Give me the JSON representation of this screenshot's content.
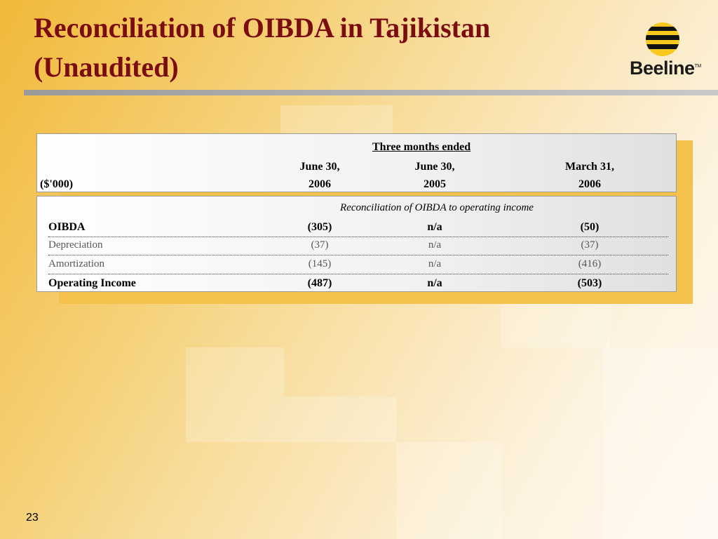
{
  "slide": {
    "title_line1": "Reconciliation of OIBDA in Tajikistan",
    "title_line2": "(Unaudited)",
    "page_number": "23"
  },
  "logo": {
    "text": "Beeline",
    "tm": "TM",
    "icon": "beeline-logo-icon"
  },
  "colors": {
    "title": "#7a0c12",
    "accent_yellow": "#f3c14c"
  },
  "table": {
    "header": {
      "span_label": "Three months ended",
      "unit_label": "($'000)",
      "columns": [
        {
          "line1": "June 30,",
          "line2": "2006"
        },
        {
          "line1": "June 30,",
          "line2": "2005"
        },
        {
          "line1": "March 31,",
          "line2": "2006"
        }
      ]
    },
    "subcaption": "Reconciliation of OIBDA to operating income",
    "rows": [
      {
        "label": "OIBDA",
        "values": [
          "(305)",
          "n/a",
          "(50)"
        ]
      },
      {
        "label": "Depreciation",
        "values": [
          "(37)",
          "n/a",
          "(37)"
        ]
      },
      {
        "label": "Amortization",
        "values": [
          "(145)",
          "n/a",
          "(416)"
        ]
      },
      {
        "label": "Operating Income",
        "values": [
          "(487)",
          "n/a",
          "(503)"
        ]
      }
    ]
  }
}
